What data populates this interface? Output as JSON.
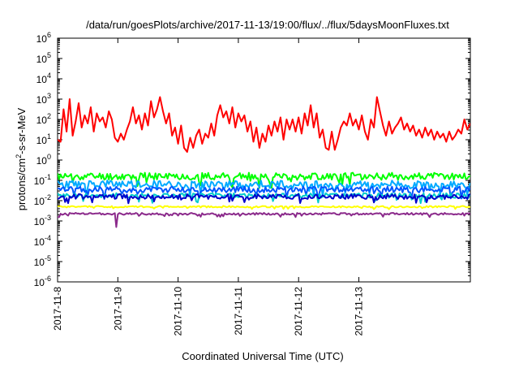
{
  "chart_data": {
    "type": "line",
    "title": "/data/run/goesPlots/archive/2017-11-13/19:00/flux/../flux/5daysMoonFluxes.txt",
    "xlabel": "Coordinated Universal Time (UTC)",
    "ylabel": {
      "base": "protons/cm",
      "sup": "2",
      "rest": "-s-sr-MeV"
    },
    "yscale": "log",
    "ylim_exp": [
      -6,
      6
    ],
    "y_ticks": [
      {
        "base": "10",
        "exp": "-6"
      },
      {
        "base": "10",
        "exp": "-5"
      },
      {
        "base": "10",
        "exp": "-4"
      },
      {
        "base": "10",
        "exp": "-3"
      },
      {
        "base": "10",
        "exp": "-2"
      },
      {
        "base": "10",
        "exp": "-1"
      },
      {
        "base": "10",
        "exp": "0"
      },
      {
        "base": "10",
        "exp": "1"
      },
      {
        "base": "10",
        "exp": "2"
      },
      {
        "base": "10",
        "exp": "3"
      },
      {
        "base": "10",
        "exp": "4"
      },
      {
        "base": "10",
        "exp": "5"
      },
      {
        "base": "10",
        "exp": "6"
      }
    ],
    "x_ticks": [
      "2017-11-8",
      "2017-11-9",
      "2017-11-10",
      "2017-11-11",
      "2017-11-12",
      "2017-11-13"
    ],
    "xlim_days": [
      0,
      6.85
    ],
    "grid": false,
    "legend": "none",
    "series": [
      {
        "color": "#ff0000",
        "width": 2,
        "points": [
          [
            0.0,
            1
          ],
          [
            0.05,
            0.9
          ],
          [
            0.1,
            2.5
          ],
          [
            0.15,
            1.4
          ],
          [
            0.2,
            3.0
          ],
          [
            0.25,
            1.2
          ],
          [
            0.3,
            1.9
          ],
          [
            0.35,
            2.8
          ],
          [
            0.4,
            1.6
          ],
          [
            0.45,
            2.2
          ],
          [
            0.5,
            1.8
          ],
          [
            0.55,
            2.6
          ],
          [
            0.6,
            1.4
          ],
          [
            0.65,
            2.3
          ],
          [
            0.7,
            1.9
          ],
          [
            0.75,
            2.1
          ],
          [
            0.8,
            1.6
          ],
          [
            0.85,
            2.4
          ],
          [
            0.9,
            2.0
          ],
          [
            0.95,
            1.1
          ],
          [
            1.0,
            0.9
          ],
          [
            1.05,
            1.3
          ],
          [
            1.1,
            1.0
          ],
          [
            1.15,
            1.5
          ],
          [
            1.2,
            1.9
          ],
          [
            1.25,
            2.6
          ],
          [
            1.3,
            1.8
          ],
          [
            1.35,
            2.2
          ],
          [
            1.4,
            1.5
          ],
          [
            1.45,
            2.3
          ],
          [
            1.5,
            1.7
          ],
          [
            1.55,
            2.9
          ],
          [
            1.6,
            2.1
          ],
          [
            1.65,
            2.5
          ],
          [
            1.7,
            3.1
          ],
          [
            1.75,
            2.4
          ],
          [
            1.8,
            1.8
          ],
          [
            1.85,
            2.3
          ],
          [
            1.9,
            1.2
          ],
          [
            1.95,
            1.6
          ],
          [
            2.0,
            0.8
          ],
          [
            2.05,
            1.7
          ],
          [
            2.1,
            0.6
          ],
          [
            2.15,
            0.4
          ],
          [
            2.2,
            1.1
          ],
          [
            2.25,
            0.6
          ],
          [
            2.3,
            1.2
          ],
          [
            2.35,
            1.5
          ],
          [
            2.4,
            0.8
          ],
          [
            2.45,
            1.3
          ],
          [
            2.5,
            1.1
          ],
          [
            2.55,
            1.8
          ],
          [
            2.6,
            1.2
          ],
          [
            2.65,
            2.2
          ],
          [
            2.7,
            2.7
          ],
          [
            2.75,
            2.1
          ],
          [
            2.8,
            2.4
          ],
          [
            2.85,
            1.8
          ],
          [
            2.9,
            2.6
          ],
          [
            2.95,
            1.6
          ],
          [
            3.0,
            2.3
          ],
          [
            3.05,
            1.9
          ],
          [
            3.1,
            2.2
          ],
          [
            3.15,
            1.4
          ],
          [
            3.2,
            1.9
          ],
          [
            3.25,
            0.9
          ],
          [
            3.3,
            1.6
          ],
          [
            3.35,
            0.6
          ],
          [
            3.4,
            1.3
          ],
          [
            3.45,
            0.9
          ],
          [
            3.5,
            1.7
          ],
          [
            3.55,
            1.2
          ],
          [
            3.6,
            1.9
          ],
          [
            3.65,
            1.4
          ],
          [
            3.7,
            2.1
          ],
          [
            3.75,
            1.0
          ],
          [
            3.8,
            2.0
          ],
          [
            3.85,
            1.5
          ],
          [
            3.9,
            2.0
          ],
          [
            3.95,
            1.4
          ],
          [
            4.0,
            2.1
          ],
          [
            4.05,
            1.3
          ],
          [
            4.1,
            2.3
          ],
          [
            4.15,
            1.7
          ],
          [
            4.2,
            2.7
          ],
          [
            4.25,
            1.6
          ],
          [
            4.3,
            2.3
          ],
          [
            4.35,
            1.1
          ],
          [
            4.4,
            1.5
          ],
          [
            4.45,
            0.6
          ],
          [
            4.5,
            0.5
          ],
          [
            4.55,
            1.4
          ],
          [
            4.6,
            0.5
          ],
          [
            4.65,
            1.0
          ],
          [
            4.7,
            1.6
          ],
          [
            4.75,
            1.9
          ],
          [
            4.8,
            1.7
          ],
          [
            4.85,
            2.3
          ],
          [
            4.9,
            1.7
          ],
          [
            4.95,
            2.0
          ],
          [
            5.0,
            1.5
          ],
          [
            5.05,
            2.2
          ],
          [
            5.1,
            1.4
          ],
          [
            5.15,
            1.0
          ],
          [
            5.2,
            2.0
          ],
          [
            5.25,
            1.6
          ],
          [
            5.3,
            3.1
          ],
          [
            5.35,
            2.4
          ],
          [
            5.4,
            1.7
          ],
          [
            5.45,
            1.2
          ],
          [
            5.5,
            1.9
          ],
          [
            5.55,
            1.3
          ],
          [
            5.6,
            1.6
          ],
          [
            5.65,
            1.8
          ],
          [
            5.7,
            2.1
          ],
          [
            5.75,
            1.5
          ],
          [
            5.8,
            1.8
          ],
          [
            5.85,
            1.4
          ],
          [
            5.9,
            1.7
          ],
          [
            5.95,
            1.2
          ],
          [
            6.0,
            1.5
          ],
          [
            6.05,
            1.1
          ],
          [
            6.1,
            1.6
          ],
          [
            6.15,
            1.2
          ],
          [
            6.2,
            1.5
          ],
          [
            6.25,
            1.0
          ],
          [
            6.3,
            1.4
          ],
          [
            6.35,
            1.1
          ],
          [
            6.4,
            1.3
          ],
          [
            6.45,
            0.9
          ],
          [
            6.5,
            1.4
          ],
          [
            6.55,
            1.0
          ],
          [
            6.6,
            1.2
          ],
          [
            6.65,
            1.5
          ],
          [
            6.7,
            1.3
          ],
          [
            6.75,
            2.0
          ],
          [
            6.8,
            1.5
          ],
          [
            6.85,
            1.8
          ]
        ]
      },
      {
        "color": "#00ff00",
        "width": 2,
        "base": -0.8,
        "amp": 0.18,
        "seed": 11,
        "dips": []
      },
      {
        "color": "#00aaff",
        "width": 2,
        "base": -1.2,
        "amp": 0.2,
        "seed": 23,
        "dips": []
      },
      {
        "color": "#0055ff",
        "width": 2,
        "base": -1.45,
        "amp": 0.15,
        "seed": 37,
        "dips": []
      },
      {
        "color": "#00cccc",
        "width": 2,
        "base": -1.75,
        "amp": 0.12,
        "seed": 41,
        "dips": []
      },
      {
        "color": "#0000cc",
        "width": 2,
        "base": -1.8,
        "amp": 0.12,
        "seed": 53,
        "dips": []
      },
      {
        "color": "#ffff00",
        "width": 2,
        "base": -2.3,
        "amp": 0.04,
        "seed": 61,
        "dips": []
      },
      {
        "color": "#8b2a8b",
        "width": 2,
        "base": -2.65,
        "amp": 0.05,
        "seed": 71,
        "dips": [
          [
            0.98,
            -3.3
          ]
        ]
      }
    ]
  }
}
